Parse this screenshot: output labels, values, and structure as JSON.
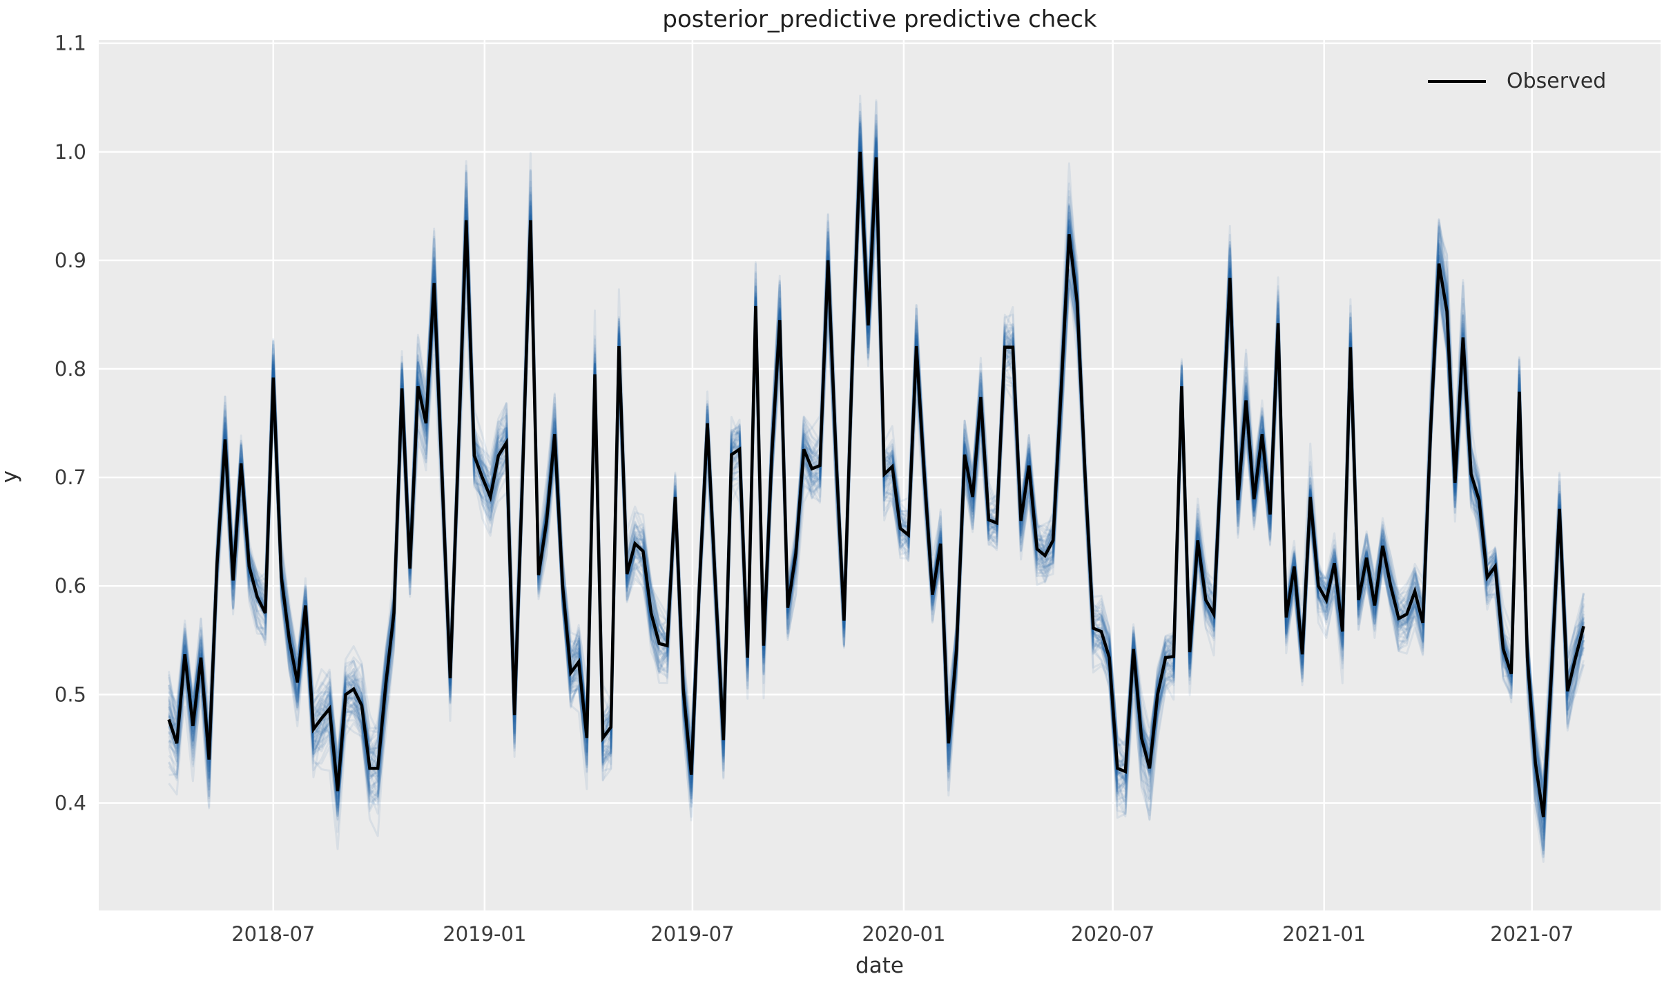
{
  "figure": {
    "title": "posterior_predictive predictive check"
  },
  "chart_data": {
    "type": "line",
    "title": "posterior_predictive predictive check",
    "xlabel": "date",
    "ylabel": "y",
    "grid": true,
    "background_color": "#ebebeb",
    "grid_color": "#ffffff",
    "text_color": "#3b3b3b",
    "legend": {
      "position": "upper right",
      "entries": [
        {
          "label": "Observed",
          "color": "#000000"
        }
      ]
    },
    "xlim": [
      "2018-01-30",
      "2021-10-21"
    ],
    "ylim": [
      0.301,
      1.103
    ],
    "y_ticks": [
      0.4,
      0.5,
      0.6,
      0.7,
      0.8,
      0.9,
      1.0,
      1.1
    ],
    "x_ticks": [
      {
        "date": "2018-07-01",
        "label": "2018-07"
      },
      {
        "date": "2019-01-01",
        "label": "2019-01"
      },
      {
        "date": "2019-07-01",
        "label": "2019-07"
      },
      {
        "date": "2020-01-01",
        "label": "2020-01"
      },
      {
        "date": "2020-07-01",
        "label": "2020-07"
      },
      {
        "date": "2021-01-01",
        "label": "2021-01"
      },
      {
        "date": "2021-07-01",
        "label": "2021-07"
      }
    ],
    "series": [
      {
        "name": "Observed",
        "type": "line",
        "color": "#000000",
        "line_width": 4.5,
        "start_date": "2018-04-01",
        "interval_days": 7,
        "values": [
          0.477,
          0.455,
          0.537,
          0.471,
          0.534,
          0.44,
          0.62,
          0.735,
          0.605,
          0.713,
          0.618,
          0.59,
          0.575,
          0.792,
          0.608,
          0.55,
          0.511,
          0.582,
          0.468,
          0.478,
          0.487,
          0.411,
          0.5,
          0.505,
          0.49,
          0.432,
          0.432,
          0.51,
          0.575,
          0.782,
          0.616,
          0.784,
          0.75,
          0.879,
          0.7,
          0.515,
          0.72,
          0.937,
          0.72,
          0.7,
          0.682,
          0.72,
          0.732,
          0.481,
          0.7,
          0.937,
          0.61,
          0.66,
          0.74,
          0.6,
          0.52,
          0.53,
          0.46,
          0.795,
          0.46,
          0.47,
          0.821,
          0.611,
          0.639,
          0.632,
          0.575,
          0.547,
          0.545,
          0.682,
          0.505,
          0.426,
          0.6,
          0.75,
          0.6,
          0.458,
          0.721,
          0.726,
          0.534,
          0.858,
          0.545,
          0.72,
          0.845,
          0.58,
          0.63,
          0.726,
          0.708,
          0.711,
          0.9,
          0.72,
          0.568,
          0.8,
          1.0,
          0.84,
          0.995,
          0.703,
          0.71,
          0.653,
          0.647,
          0.821,
          0.7,
          0.592,
          0.639,
          0.455,
          0.542,
          0.721,
          0.682,
          0.774,
          0.661,
          0.658,
          0.82,
          0.82,
          0.66,
          0.711,
          0.634,
          0.628,
          0.642,
          0.78,
          0.924,
          0.861,
          0.7,
          0.561,
          0.558,
          0.534,
          0.432,
          0.429,
          0.542,
          0.46,
          0.432,
          0.5,
          0.534,
          0.535,
          0.784,
          0.539,
          0.642,
          0.587,
          0.574,
          0.73,
          0.884,
          0.679,
          0.771,
          0.68,
          0.74,
          0.666,
          0.842,
          0.571,
          0.618,
          0.537,
          0.682,
          0.6,
          0.587,
          0.621,
          0.558,
          0.82,
          0.587,
          0.626,
          0.582,
          0.637,
          0.6,
          0.57,
          0.574,
          0.595,
          0.566,
          0.75,
          0.897,
          0.853,
          0.695,
          0.829,
          0.703,
          0.679,
          0.608,
          0.618,
          0.542,
          0.519,
          0.779,
          0.534,
          0.437,
          0.387,
          0.52,
          0.671,
          0.503,
          0.534,
          0.563
        ]
      },
      {
        "name": "posterior_predictive samples",
        "type": "sample_band",
        "color": "#1c5f9f",
        "sample_count": 60,
        "sample_opacity": 0.085,
        "sample_line_width": 3,
        "noise_base": 0.016,
        "noise_slope": 0.045,
        "noise_center": 0.62,
        "seed": 42
      }
    ]
  }
}
